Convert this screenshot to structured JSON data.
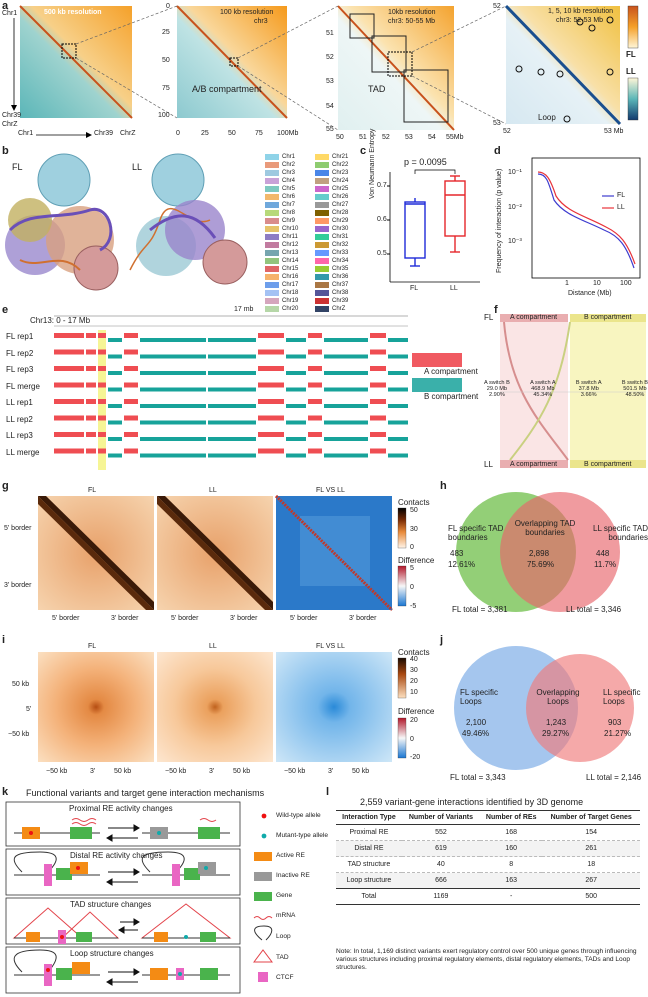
{
  "panels": {
    "a": {
      "label": "a",
      "m1": {
        "title": "500 kb resolution",
        "ylabels": [
          "Chr1",
          "Chr39",
          "ChrZ"
        ],
        "xlabels": [
          "Chr1",
          "Chr39",
          "ChrZ"
        ]
      },
      "m2": {
        "title": "100 kb resolution",
        "sub": "chr3",
        "annot": "A/B compartment",
        "yticks": [
          "0",
          "25",
          "50",
          "75",
          "100"
        ],
        "xticks": [
          "0",
          "25",
          "50",
          "75",
          "100Mb"
        ]
      },
      "m3": {
        "title": "10kb resolution",
        "sub": "chr3: 50-55 Mb",
        "annot": "TAD",
        "yticks": [
          "51",
          "52",
          "53",
          "54",
          "55"
        ],
        "xticks": [
          "50",
          "51",
          "52",
          "53",
          "54",
          "55Mb"
        ]
      },
      "m4": {
        "title": "1, 5, 10 kb resolution",
        "sub": "chr3: 52-53 Mb",
        "annot": "Loop",
        "ytop": "52",
        "ybot": "53",
        "xleft": "52",
        "xright": "53 Mb"
      },
      "legend": {
        "fl": "FL",
        "ll": "LL"
      }
    },
    "b": {
      "label": "b",
      "fl": "FL",
      "ll": "LL",
      "chromosomes": [
        {
          "name": "Chr1",
          "color": "#8fd3e8"
        },
        {
          "name": "Chr2",
          "color": "#e99a7a"
        },
        {
          "name": "Chr3",
          "color": "#9ec9e0"
        },
        {
          "name": "Chr4",
          "color": "#c9a2d8"
        },
        {
          "name": "Chr5",
          "color": "#7ec9c0"
        },
        {
          "name": "Chr6",
          "color": "#f2b86b"
        },
        {
          "name": "Chr7",
          "color": "#6fa8dc"
        },
        {
          "name": "Chr8",
          "color": "#b7d97a"
        },
        {
          "name": "Chr9",
          "color": "#d98c8c"
        },
        {
          "name": "Chr10",
          "color": "#e6c36a"
        },
        {
          "name": "Chr11",
          "color": "#8e7cc3"
        },
        {
          "name": "Chr12",
          "color": "#c27ba0"
        },
        {
          "name": "Chr13",
          "color": "#76a5af"
        },
        {
          "name": "Chr14",
          "color": "#93c47d"
        },
        {
          "name": "Chr15",
          "color": "#e06666"
        },
        {
          "name": "Chr16",
          "color": "#f6b26b"
        },
        {
          "name": "Chr17",
          "color": "#6d9eeb"
        },
        {
          "name": "Chr18",
          "color": "#a4c2f4"
        },
        {
          "name": "Chr19",
          "color": "#d5a6bd"
        },
        {
          "name": "Chr20",
          "color": "#b6d7a8"
        },
        {
          "name": "Chr21",
          "color": "#ffd966"
        },
        {
          "name": "Chr22",
          "color": "#8ecc70"
        },
        {
          "name": "Chr23",
          "color": "#4a86e8"
        },
        {
          "name": "Chr24",
          "color": "#c0a080"
        },
        {
          "name": "Chr25",
          "color": "#cc66cc"
        },
        {
          "name": "Chr26",
          "color": "#66cccc"
        },
        {
          "name": "Chr27",
          "color": "#999999"
        },
        {
          "name": "Chr28",
          "color": "#7f6000"
        },
        {
          "name": "Chr29",
          "color": "#ff9966"
        },
        {
          "name": "Chr30",
          "color": "#9966cc"
        },
        {
          "name": "Chr31",
          "color": "#33cc99"
        },
        {
          "name": "Chr32",
          "color": "#cc9933"
        },
        {
          "name": "Chr33",
          "color": "#6699ff"
        },
        {
          "name": "Chr34",
          "color": "#ff66aa"
        },
        {
          "name": "Chr35",
          "color": "#99cc33"
        },
        {
          "name": "Chr36",
          "color": "#3399aa"
        },
        {
          "name": "Chr37",
          "color": "#aa7744"
        },
        {
          "name": "Chr38",
          "color": "#555599"
        },
        {
          "name": "Chr39",
          "color": "#cc3333"
        },
        {
          "name": "ChrZ",
          "color": "#334466"
        }
      ]
    },
    "c": {
      "label": "c",
      "pval": "p = 0.0095",
      "ylabel": "Von Neumann Entropy",
      "yticks": [
        "0.5",
        "0.6",
        "0.7"
      ],
      "xlabels": [
        "FL",
        "LL"
      ]
    },
    "d": {
      "label": "d",
      "ylabel": "Frequency of interaction (p value)",
      "xlabel": "Distance (Mb)",
      "yticks": [
        "10⁻¹",
        "10⁻²",
        "10⁻³"
      ],
      "xticks": [
        "1",
        "10",
        "100"
      ],
      "legend": [
        "FL",
        "LL"
      ]
    },
    "e": {
      "label": "e",
      "region": "Chr13: 0 - 17 Mb",
      "scale": "17 mb",
      "rows": [
        "FL rep1",
        "FL rep2",
        "FL rep3",
        "FL merge",
        "LL rep1",
        "LL rep2",
        "LL rep3",
        "LL merge"
      ],
      "legend_a": "A compartment",
      "legend_b": "B compartment"
    },
    "f": {
      "label": "f",
      "top_left": "FL",
      "bottom_left": "LL",
      "top_a": "A compartment",
      "top_b": "B compartment",
      "bot_a": "A compartment",
      "bot_b": "B compartment",
      "flows": [
        {
          "name": "A switch B",
          "mb": "29.0 Mb",
          "pct": "2.90%"
        },
        {
          "name": "A switch A",
          "mb": "468.9 Mb",
          "pct": "45.34%"
        },
        {
          "name": "B switch A",
          "mb": "37.8 Mb",
          "pct": "3.66%"
        },
        {
          "name": "B switch B",
          "mb": "501.5 Mb",
          "pct": "48.50%"
        }
      ]
    },
    "g": {
      "label": "g",
      "titles": [
        "FL",
        "LL",
        "FL VS LL"
      ],
      "ylabels": [
        "5' border",
        "3' border"
      ],
      "xlabels": [
        "5' border",
        "3' border"
      ],
      "contacts": "Contacts",
      "contacts_ticks": [
        "50",
        "30",
        "0"
      ],
      "diff": "Difference",
      "diff_ticks": [
        "5",
        "0",
        "-5"
      ]
    },
    "h": {
      "label": "h",
      "left_title": "FL specific TAD boundaries",
      "left_n": "483",
      "left_pct": "12.61%",
      "mid_title": "Overlapping TAD boundaries",
      "mid_n": "2,898",
      "mid_pct": "75.69%",
      "right_title": "LL specific TAD boundaries",
      "right_n": "448",
      "right_pct": "11.7%",
      "fl_total": "FL total = 3,381",
      "ll_total": "LL total = 3,346"
    },
    "i": {
      "label": "i",
      "titles": [
        "FL",
        "LL",
        "FL VS LL"
      ],
      "yticks": [
        "50 kb",
        "5'",
        "−50 kb"
      ],
      "xticks": [
        "−50 kb",
        "3'",
        "50 kb"
      ],
      "contacts": "Contacts",
      "contacts_ticks": [
        "40",
        "30",
        "20",
        "10"
      ],
      "diff": "Difference",
      "diff_ticks": [
        "20",
        "0",
        "-20"
      ]
    },
    "j": {
      "label": "j",
      "left_title": "FL specific Loops",
      "left_n": "2,100",
      "left_pct": "49.46%",
      "mid_title": "Overlapping Loops",
      "mid_n": "1,243",
      "mid_pct": "29.27%",
      "right_title": "LL specific Loops",
      "right_n": "903",
      "right_pct": "21.27%",
      "fl_total": "FL total = 3,343",
      "ll_total": "LL total = 2,146"
    },
    "k": {
      "label": "k",
      "title": "Functional variants and target gene interaction mechanisms",
      "boxes": [
        "Proximal RE activity changes",
        "Distal RE activity changes",
        "TAD structure changes",
        "Loop structure changes"
      ],
      "legend": [
        "Wild-type allele",
        "Mutant-type allele",
        "Active RE",
        "Inactive RE",
        "Gene",
        "mRNA",
        "Loop",
        "TAD",
        "CTCF"
      ]
    },
    "l": {
      "label": "l",
      "title": "2,559 variant-gene interactions identified by 3D genome",
      "headers": [
        "Interaction Type",
        "Number of Variants",
        "Number of REs",
        "Number of Target Genes"
      ],
      "rows": [
        [
          "Proximal RE",
          "552",
          "168",
          "154"
        ],
        [
          "Distal RE",
          "619",
          "160",
          "261"
        ],
        [
          "TAD structure",
          "40",
          "8",
          "18"
        ],
        [
          "Loop structure",
          "666",
          "163",
          "267"
        ],
        [
          "Total",
          "1169",
          "-",
          "500"
        ]
      ],
      "note": "Note: In total, 1,169 distinct variants exert regulatory control over 500 unique genes through influencing various structures including proximal regulatory elements, distal regulatory elements, TADs and Loop structures."
    }
  }
}
